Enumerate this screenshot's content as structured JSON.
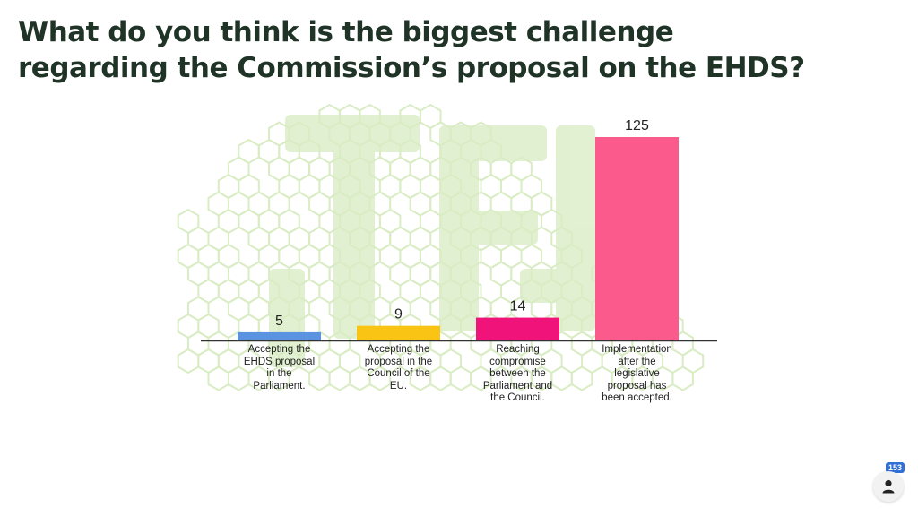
{
  "question": "What do you think is the biggest challenge regarding the Commission’s proposal on the EHDS?",
  "participant_count": "153",
  "participants_icon": "person-icon",
  "watermark_icon": "hexagon-pattern-logo",
  "colors": {
    "title": "#1f3326",
    "axis": "#333333",
    "watermark": "#d9ecc4"
  },
  "chart_data": {
    "type": "bar",
    "title": "",
    "xlabel": "",
    "ylabel": "",
    "categories": [
      "Accepting the EHDS proposal in the Parliament.",
      "Accepting the proposal in the Council of the EU.",
      "Reaching compromise between the Parliament and the Council.",
      "Implementation after the legislative proposal has been accepted."
    ],
    "category_label_lines": [
      [
        "Accepting the",
        "EHDS proposal",
        "in the",
        "Parliament."
      ],
      [
        "Accepting the",
        "proposal in the",
        "Council of the",
        "EU."
      ],
      [
        "Reaching",
        "compromise",
        "between the",
        "Parliament and",
        "the Council."
      ],
      [
        "Implementation",
        "after the",
        "legislative",
        "proposal has",
        "been accepted."
      ]
    ],
    "values": [
      5,
      9,
      14,
      125
    ],
    "value_labels": [
      "5",
      "9",
      "14",
      "125"
    ],
    "colors": [
      "#5b93e0",
      "#f9c414",
      "#f0137a",
      "#fb5b8c"
    ],
    "ylim": [
      0,
      125
    ],
    "grid": false,
    "legend": "none"
  }
}
